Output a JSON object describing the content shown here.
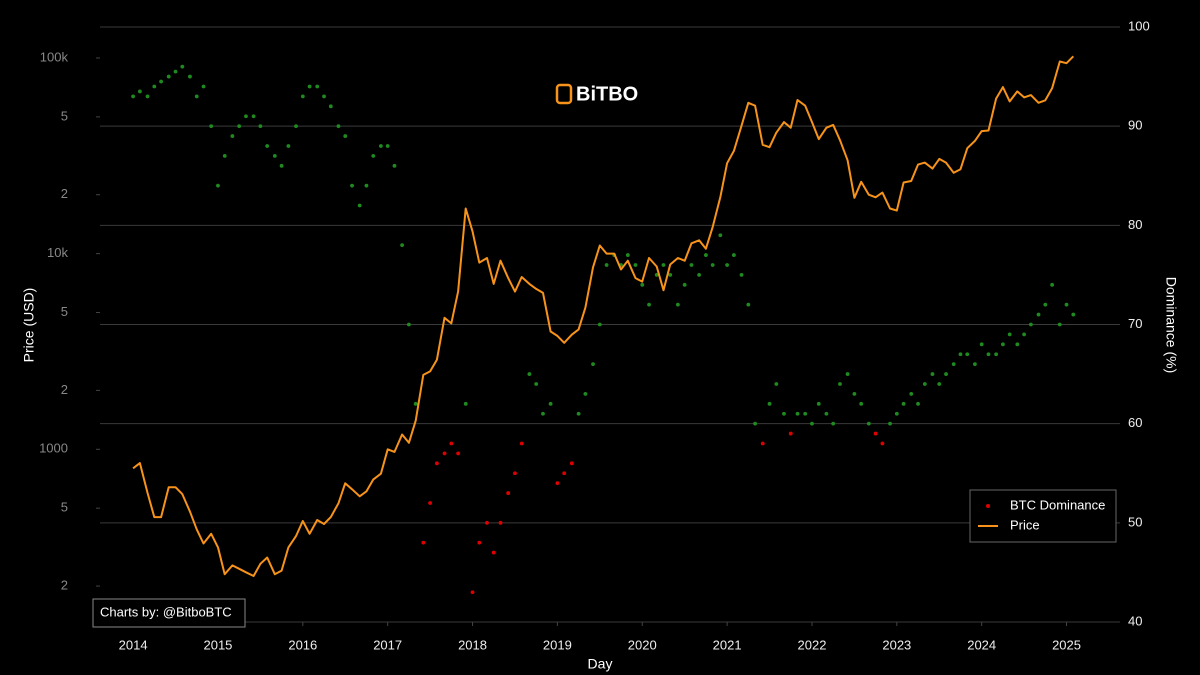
{
  "chart_data": {
    "type": "line",
    "watermark": "BiTBO",
    "credit": "Charts by: @BitboBTC",
    "x_label": "Day",
    "y_label": "Price (USD)",
    "y2_label": "Dominance (%)",
    "log_y": true,
    "grid": true,
    "legend_position": "bottom-right",
    "xlim": [
      2013.61,
      2025.63
    ],
    "xticks": [
      2014,
      2015,
      2016,
      2017,
      2018,
      2019,
      2020,
      2021,
      2022,
      2023,
      2024,
      2025
    ],
    "ylim": [
      131,
      144000
    ],
    "yticks": [
      {
        "value": 100000,
        "label": "100k"
      },
      {
        "value": 50000,
        "label": "5"
      },
      {
        "value": 20000,
        "label": "2"
      },
      {
        "value": 10000,
        "label": "10k"
      },
      {
        "value": 5000,
        "label": "5"
      },
      {
        "value": 2000,
        "label": "2"
      },
      1000,
      {
        "value": 500,
        "label": "5"
      },
      {
        "value": 200,
        "label": "2"
      }
    ],
    "y2lim": [
      40,
      100
    ],
    "y2ticks": [
      40,
      50,
      60,
      70,
      80,
      90,
      100
    ],
    "x": [
      2014.0,
      2014.08,
      2014.17,
      2014.25,
      2014.33,
      2014.42,
      2014.5,
      2014.58,
      2014.67,
      2014.75,
      2014.83,
      2014.92,
      2015.0,
      2015.08,
      2015.17,
      2015.25,
      2015.33,
      2015.42,
      2015.5,
      2015.58,
      2015.67,
      2015.75,
      2015.83,
      2015.92,
      2016.0,
      2016.08,
      2016.17,
      2016.25,
      2016.33,
      2016.42,
      2016.5,
      2016.58,
      2016.67,
      2016.75,
      2016.83,
      2016.92,
      2017.0,
      2017.08,
      2017.17,
      2017.25,
      2017.33,
      2017.42,
      2017.5,
      2017.58,
      2017.67,
      2017.75,
      2017.83,
      2017.92,
      2018.0,
      2018.08,
      2018.17,
      2018.25,
      2018.33,
      2018.42,
      2018.5,
      2018.58,
      2018.67,
      2018.75,
      2018.83,
      2018.92,
      2019.0,
      2019.08,
      2019.17,
      2019.25,
      2019.33,
      2019.42,
      2019.5,
      2019.58,
      2019.67,
      2019.75,
      2019.83,
      2019.92,
      2020.0,
      2020.08,
      2020.17,
      2020.25,
      2020.33,
      2020.42,
      2020.5,
      2020.58,
      2020.67,
      2020.75,
      2020.83,
      2020.92,
      2021.0,
      2021.08,
      2021.17,
      2021.25,
      2021.33,
      2021.42,
      2021.5,
      2021.58,
      2021.67,
      2021.75,
      2021.83,
      2021.92,
      2022.0,
      2022.08,
      2022.17,
      2022.25,
      2022.33,
      2022.42,
      2022.5,
      2022.58,
      2022.67,
      2022.75,
      2022.83,
      2022.92,
      2023.0,
      2023.08,
      2023.17,
      2023.25,
      2023.33,
      2023.42,
      2023.5,
      2023.58,
      2023.67,
      2023.75,
      2023.83,
      2023.92,
      2024.0,
      2024.08,
      2024.17,
      2024.25,
      2024.33,
      2024.42,
      2024.5,
      2024.58,
      2024.67,
      2024.75,
      2024.83,
      2024.92,
      2025.0,
      2025.08
    ],
    "series": [
      {
        "name": "BTC Dominance",
        "axis": "y2",
        "mode": "markers",
        "color": "#e00000",
        "color_above": "#1f8a1f",
        "threshold": 60,
        "values": [
          93,
          93.5,
          93,
          94,
          94.5,
          95,
          95.5,
          96,
          95,
          93,
          94,
          90,
          84,
          87,
          89,
          90,
          91,
          91,
          90,
          88,
          87,
          86,
          88,
          90,
          93,
          94,
          94,
          93,
          92,
          90,
          89,
          84,
          82,
          84,
          87,
          88,
          88,
          86,
          78,
          70,
          62,
          48,
          52,
          56,
          57,
          58,
          57,
          62,
          43,
          48,
          50,
          47,
          50,
          53,
          55,
          58,
          65,
          64,
          61,
          62,
          54,
          55,
          56,
          61,
          63,
          66,
          70,
          76,
          77,
          76,
          77,
          76,
          74,
          72,
          75,
          76,
          75,
          72,
          74,
          76,
          75,
          77,
          76,
          79,
          76,
          77,
          75,
          72,
          60,
          58,
          62,
          64,
          61,
          59,
          61,
          61,
          60,
          62,
          61,
          60,
          64,
          65,
          63,
          62,
          60,
          59,
          58,
          60,
          61,
          62,
          63,
          62,
          64,
          65,
          64,
          65,
          66,
          67,
          67,
          66,
          68,
          67,
          67,
          68,
          69,
          68,
          69,
          70,
          71,
          72,
          74,
          70,
          72,
          71
        ]
      },
      {
        "name": "Price",
        "color": "#f7931a",
        "values": [
          800,
          850,
          600,
          450,
          450,
          640,
          640,
          590,
          480,
          390,
          330,
          370,
          315,
          230,
          255,
          245,
          235,
          225,
          260,
          280,
          230,
          240,
          315,
          360,
          430,
          370,
          435,
          415,
          450,
          530,
          670,
          625,
          575,
          610,
          700,
          750,
          1000,
          970,
          1190,
          1080,
          1400,
          2400,
          2500,
          2870,
          4700,
          4400,
          6400,
          17000,
          13000,
          9000,
          9500,
          7000,
          9200,
          7500,
          6400,
          7600,
          7000,
          6600,
          6300,
          4000,
          3800,
          3500,
          3850,
          4100,
          5300,
          8500,
          11000,
          10000,
          10000,
          8300,
          9200,
          7500,
          7200,
          9500,
          8600,
          6500,
          8800,
          9500,
          9200,
          11300,
          11700,
          10600,
          13700,
          19400,
          29000,
          33500,
          45000,
          59000,
          57000,
          36000,
          35000,
          41500,
          47000,
          44000,
          61000,
          57000,
          47000,
          38500,
          44000,
          45500,
          38000,
          30000,
          19300,
          23300,
          20000,
          19400,
          20500,
          17000,
          16600,
          23100,
          23500,
          28500,
          29200,
          27200,
          30500,
          29200,
          25900,
          27000,
          34600,
          37700,
          42300,
          42600,
          62000,
          71000,
          60000,
          67500,
          62900,
          64600,
          59000,
          60800,
          70000,
          96000,
          94000,
          102000
        ]
      }
    ]
  }
}
